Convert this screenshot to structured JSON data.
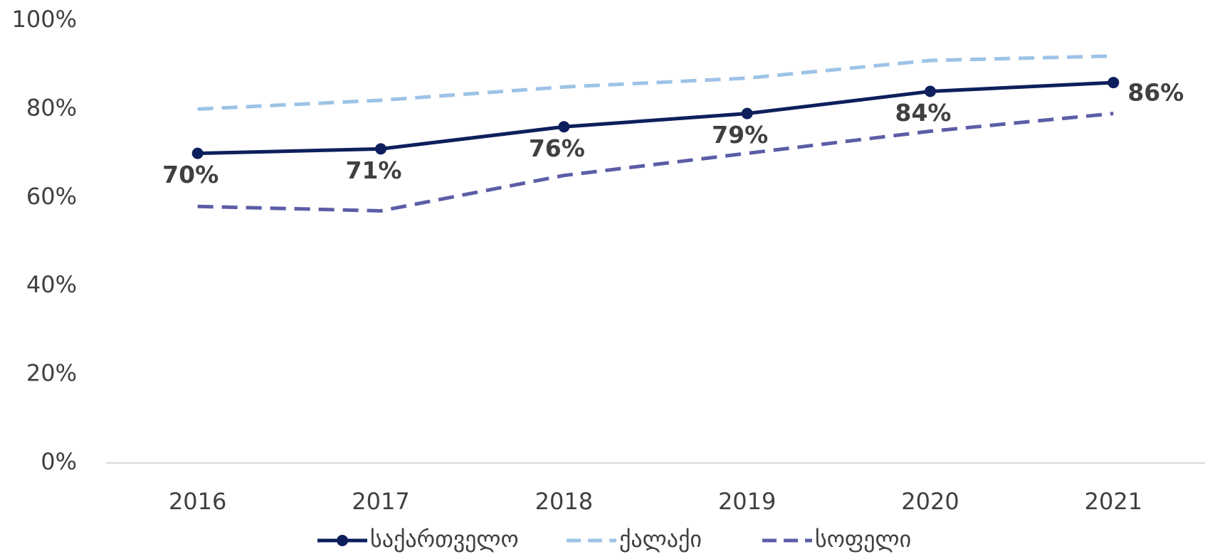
{
  "chart_data": {
    "type": "line",
    "categories": [
      "2016",
      "2017",
      "2018",
      "2019",
      "2020",
      "2021"
    ],
    "series": [
      {
        "name": "საქართველო",
        "color": "#0d1f5c",
        "dash": false,
        "markers": true,
        "values": [
          70,
          71,
          76,
          79,
          84,
          86
        ],
        "value_labels": [
          "70%",
          "71%",
          "76%",
          "79%",
          "84%",
          "86%"
        ]
      },
      {
        "name": "ქალაქი",
        "color": "#9dc3e6",
        "dash": true,
        "markers": false,
        "values": [
          80,
          82,
          85,
          87,
          91,
          92
        ]
      },
      {
        "name": "სოფელი",
        "color": "#5b5ea6",
        "dash": true,
        "markers": false,
        "values": [
          58,
          57,
          65,
          70,
          75,
          79
        ]
      }
    ],
    "ylim": [
      0,
      100
    ],
    "yticks": [
      {
        "value": 0,
        "label": "0%"
      },
      {
        "value": 20,
        "label": "20%"
      },
      {
        "value": 40,
        "label": "40%"
      },
      {
        "value": 60,
        "label": "60%"
      },
      {
        "value": 80,
        "label": "80%"
      },
      {
        "value": 100,
        "label": "100%"
      }
    ],
    "grid": false,
    "legend": "bottom"
  }
}
